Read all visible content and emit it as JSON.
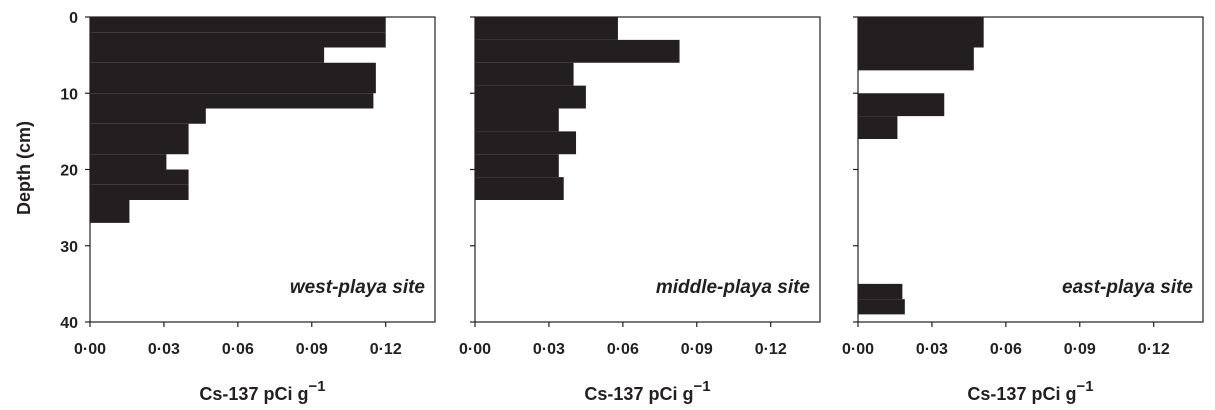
{
  "chart_data": {
    "type": "bar",
    "orientation": "horizontal",
    "ylabel": "Depth (cm)",
    "ylim": [
      0,
      40
    ],
    "yticks": [
      "0",
      "10",
      "20",
      "30",
      "40"
    ],
    "xlim": [
      0,
      0.14
    ],
    "xticks": [
      "0·00",
      "0·03",
      "0·06",
      "0·09",
      "0·12"
    ],
    "xlabel_main": "Cs-137 pCi g",
    "xlabel_sup": "−1",
    "bar_color": "#231f20",
    "panels": [
      {
        "site": "west-playa site",
        "depth_top": [
          0,
          2,
          4,
          6,
          8,
          10,
          12,
          14,
          16,
          18,
          20,
          22,
          24
        ],
        "depth_bottom": [
          2,
          4,
          6,
          8,
          10,
          12,
          14,
          16,
          18,
          20,
          22,
          24,
          27
        ],
        "values": [
          0.12,
          0.12,
          0.095,
          0.116,
          0.116,
          0.115,
          0.047,
          0.04,
          0.04,
          0.031,
          0.04,
          0.04,
          0.016
        ]
      },
      {
        "site": "middle-playa site",
        "depth_top": [
          0,
          3,
          6,
          9,
          12,
          15,
          18,
          21
        ],
        "depth_bottom": [
          3,
          6,
          9,
          12,
          15,
          18,
          21,
          24
        ],
        "values": [
          0.058,
          0.083,
          0.04,
          0.045,
          0.034,
          0.041,
          0.034,
          0.036
        ]
      },
      {
        "site": "east-playa site",
        "depth_top": [
          0,
          4,
          10,
          13,
          35,
          37
        ],
        "depth_bottom": [
          4,
          7,
          13,
          16,
          37,
          39
        ],
        "values": [
          0.051,
          0.047,
          0.035,
          0.016,
          0.018,
          0.019
        ]
      }
    ]
  }
}
